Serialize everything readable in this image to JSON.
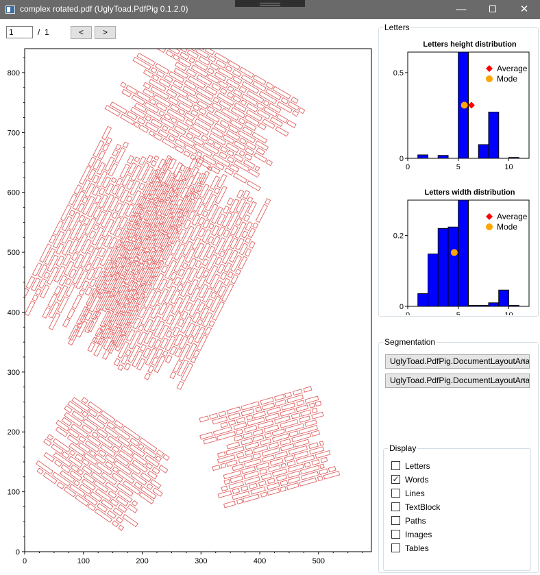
{
  "window": {
    "title": "complex rotated.pdf (UglyToad.PdfPig 0.1.2.0)",
    "app_icon": "app-window-icon",
    "controls": {
      "minimize": "—",
      "maximize_icon": "maximize-icon",
      "close": "✕"
    }
  },
  "navigation": {
    "page_value": "1",
    "separator": "/",
    "total_pages": "1",
    "prev_label": "<",
    "next_label": ">"
  },
  "main_plot": {
    "xlim": [
      0,
      590
    ],
    "ylim": [
      0,
      840
    ],
    "x_ticks": [
      "0",
      "100",
      "200",
      "300",
      "400",
      "500"
    ],
    "x_tick_values": [
      0,
      100,
      200,
      300,
      400,
      500
    ],
    "y_ticks": [
      "0",
      "100",
      "200",
      "300",
      "400",
      "500",
      "600",
      "700",
      "800"
    ],
    "y_tick_values": [
      0,
      100,
      200,
      300,
      400,
      500,
      600,
      700,
      800
    ],
    "word_box_color": "#e06060",
    "text_blocks": [
      {
        "cx": 310,
        "cy": 742,
        "angle": -30,
        "rows": 19,
        "length": 300,
        "row_h": 6
      },
      {
        "cx": 145,
        "cy": 515,
        "angle": 63,
        "rows": 20,
        "length": 360,
        "row_h": 6
      },
      {
        "cx": 253,
        "cy": 470,
        "angle": 63,
        "rows": 22,
        "length": 385,
        "row_h": 6
      },
      {
        "cx": 135,
        "cy": 145,
        "angle": -35,
        "rows": 16,
        "length": 220,
        "row_h": 6
      },
      {
        "cx": 415,
        "cy": 175,
        "angle": 16,
        "rows": 17,
        "length": 215,
        "row_h": 6
      }
    ]
  },
  "letters_panel": {
    "title": "Letters",
    "height_chart": {
      "type": "bar",
      "title": "Letters height distribution",
      "xlim": [
        0,
        12
      ],
      "ylim": [
        0,
        0.62
      ],
      "x_ticks": [
        "0",
        "5",
        "10"
      ],
      "x_tick_values": [
        0,
        5,
        10
      ],
      "y_ticks": [
        "0",
        "0.5"
      ],
      "y_tick_values": [
        0,
        0.5
      ],
      "bin_edges": [
        1,
        2,
        3,
        4,
        5,
        6,
        7,
        8,
        9,
        10,
        11
      ],
      "values": [
        0.02,
        0,
        0.017,
        0,
        0.62,
        0,
        0.08,
        0.27,
        0,
        0.005
      ],
      "bar_color": "#0000ff",
      "markers": {
        "average": [
          6.3,
          0.31
        ],
        "mode": [
          5.6,
          0.31
        ]
      },
      "legend": [
        "Average",
        "Mode"
      ],
      "average_color": "#ff0000",
      "mode_color": "#ffa500"
    },
    "width_chart": {
      "type": "bar",
      "title": "Letters width distribution",
      "xlim": [
        0,
        12
      ],
      "ylim": [
        0,
        0.3
      ],
      "x_ticks": [
        "0",
        "5",
        "10"
      ],
      "x_tick_values": [
        0,
        5,
        10
      ],
      "y_ticks": [
        "0",
        "0.2"
      ],
      "y_tick_values": [
        0,
        0.2
      ],
      "bin_edges": [
        1,
        2,
        3,
        4,
        5,
        6,
        7,
        8,
        9,
        10,
        11
      ],
      "values": [
        0.036,
        0.148,
        0.22,
        0.224,
        0.3,
        0.003,
        0.003,
        0.01,
        0.046,
        0.003
      ],
      "bar_color": "#0000ff",
      "markers": {
        "average": null,
        "mode": [
          4.6,
          0.152
        ]
      },
      "legend": [
        "Average",
        "Mode"
      ],
      "average_color": "#ff0000",
      "mode_color": "#ffa500"
    }
  },
  "segmentation": {
    "title": "Segmentation",
    "word_extractor": "UglyToad.PdfPig.DocumentLayoutAnalysis",
    "page_segmenter": "UglyToad.PdfPig.DocumentLayoutAnalysis",
    "chevron": "˅"
  },
  "display": {
    "title": "Display",
    "check_mark": "✓",
    "options": [
      {
        "label": "Letters",
        "checked": false
      },
      {
        "label": "Words",
        "checked": true
      },
      {
        "label": "Lines",
        "checked": false
      },
      {
        "label": "TextBlock",
        "checked": false
      },
      {
        "label": "Paths",
        "checked": false
      },
      {
        "label": "Images",
        "checked": false
      },
      {
        "label": "Tables",
        "checked": false
      }
    ]
  }
}
